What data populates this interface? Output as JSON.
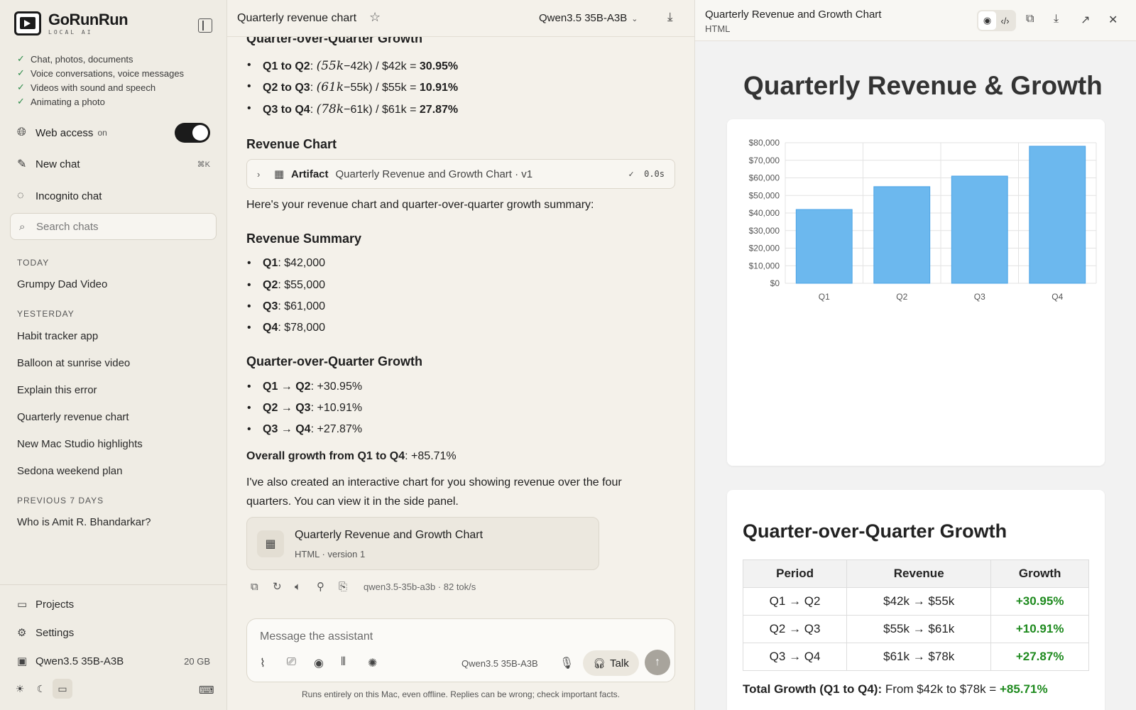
{
  "brand": {
    "name": "GoRunRun",
    "tagline": "LOCAL AI"
  },
  "features": [
    "Chat, photos, documents",
    "Voice conversations, voice messages",
    "Videos with sound and speech",
    "Animating a photo"
  ],
  "web_access": {
    "label": "Web access",
    "state": "on",
    "enabled": true
  },
  "new_chat": {
    "label": "New chat",
    "shortcut": "⌘K"
  },
  "incognito": {
    "label": "Incognito chat"
  },
  "search": {
    "placeholder": "Search chats"
  },
  "history": {
    "today_label": "TODAY",
    "today": [
      "Grumpy Dad Video"
    ],
    "yesterday_label": "YESTERDAY",
    "yesterday": [
      "Habit tracker app",
      "Balloon at sunrise video",
      "Explain this error",
      "Quarterly revenue chart",
      "New Mac Studio highlights",
      "Sedona weekend plan"
    ],
    "prev_label": "PREVIOUS 7 DAYS",
    "prev": [
      "Who is Amit R. Bhandarkar?"
    ]
  },
  "bottom": {
    "projects": "Projects",
    "settings": "Settings",
    "model": "Qwen3.5 35B-A3B",
    "model_size": "20 GB"
  },
  "chat": {
    "title": "Quarterly revenue chart",
    "model": "Qwen3.5 35B-A3B",
    "top_heading": "Quarter-over-Quarter Growth",
    "calc": [
      {
        "label": "Q1 to Q2",
        "math_a": "(55",
        "math_k": "k",
        "math_b": "−42k) / $42k = ",
        "result": "30.95%"
      },
      {
        "label": "Q2 to Q3",
        "math_a": "(61",
        "math_k": "k",
        "math_b": "−55k) / $55k = ",
        "result": "10.91%"
      },
      {
        "label": "Q3 to Q4",
        "math_a": "(78",
        "math_k": "k",
        "math_b": "−61k) / $61k = ",
        "result": "27.87%"
      }
    ],
    "revenue_chart_heading": "Revenue Chart",
    "artifact_bar": {
      "keyword": "Artifact",
      "title": "Quarterly Revenue and Growth Chart · v1",
      "time": "0.0s"
    },
    "intro": "Here's your revenue chart and quarter-over-quarter growth summary:",
    "revenue_summary_heading": "Revenue Summary",
    "revenue": [
      {
        "q": "Q1",
        "v": ": $42,000"
      },
      {
        "q": "Q2",
        "v": ": $55,000"
      },
      {
        "q": "Q3",
        "v": ": $61,000"
      },
      {
        "q": "Q4",
        "v": ": $78,000"
      }
    ],
    "growth_heading": "Quarter-over-Quarter Growth",
    "growth": [
      {
        "q": "Q1 → Q2",
        "v": ": +30.95%"
      },
      {
        "q": "Q2 → Q3",
        "v": ": +10.91%"
      },
      {
        "q": "Q3 → Q4",
        "v": ": +27.87%"
      }
    ],
    "overall_label": "Overall growth from Q1 to Q4",
    "overall_value": ": +85.71%",
    "closing_line1": "I've also created an interactive chart for you showing revenue over the four",
    "closing_line2": "quarters. You can view it in the side panel.",
    "card": {
      "title": "Quarterly Revenue and Growth Chart",
      "sub": "HTML · version 1"
    },
    "meta": "qwen3.5-35b-a3b · 82 tok/s"
  },
  "composer": {
    "placeholder": "Message the assistant",
    "model": "Qwen3.5 35B-A3B",
    "talk": "Talk",
    "disclaimer": "Runs entirely on this Mac, even offline. Replies can be wrong; check important facts."
  },
  "panel": {
    "title": "Quarterly Revenue and Growth Chart",
    "type": "HTML",
    "page_title": "Quarterly Revenue & Growth",
    "table_title": "Quarter-over-Quarter Growth",
    "table_headers": [
      "Period",
      "Revenue",
      "Growth"
    ],
    "table_rows": [
      [
        "Q1 → Q2",
        "$42k → $55k",
        "+30.95%"
      ],
      [
        "Q2 → Q3",
        "$55k → $61k",
        "+10.91%"
      ],
      [
        "Q3 → Q4",
        "$61k → $78k",
        "+27.87%"
      ]
    ],
    "total_label": "Total Growth (Q1 to Q4):",
    "total_text": " From $42k to $78k = ",
    "total_value": "+85.71%"
  },
  "chart_data": {
    "type": "bar",
    "categories": [
      "Q1",
      "Q2",
      "Q3",
      "Q4"
    ],
    "values": [
      42000,
      55000,
      61000,
      78000
    ],
    "ylim": [
      0,
      80000
    ],
    "yticks": [
      0,
      10000,
      20000,
      30000,
      40000,
      50000,
      60000,
      70000,
      80000
    ],
    "ytick_labels": [
      "$0",
      "$10,000",
      "$20,000",
      "$30,000",
      "$40,000",
      "$50,000",
      "$60,000",
      "$70,000",
      "$80,000"
    ],
    "grid": true,
    "bar_color": "#6cb8ee",
    "bar_border": "#4aa3e6"
  }
}
